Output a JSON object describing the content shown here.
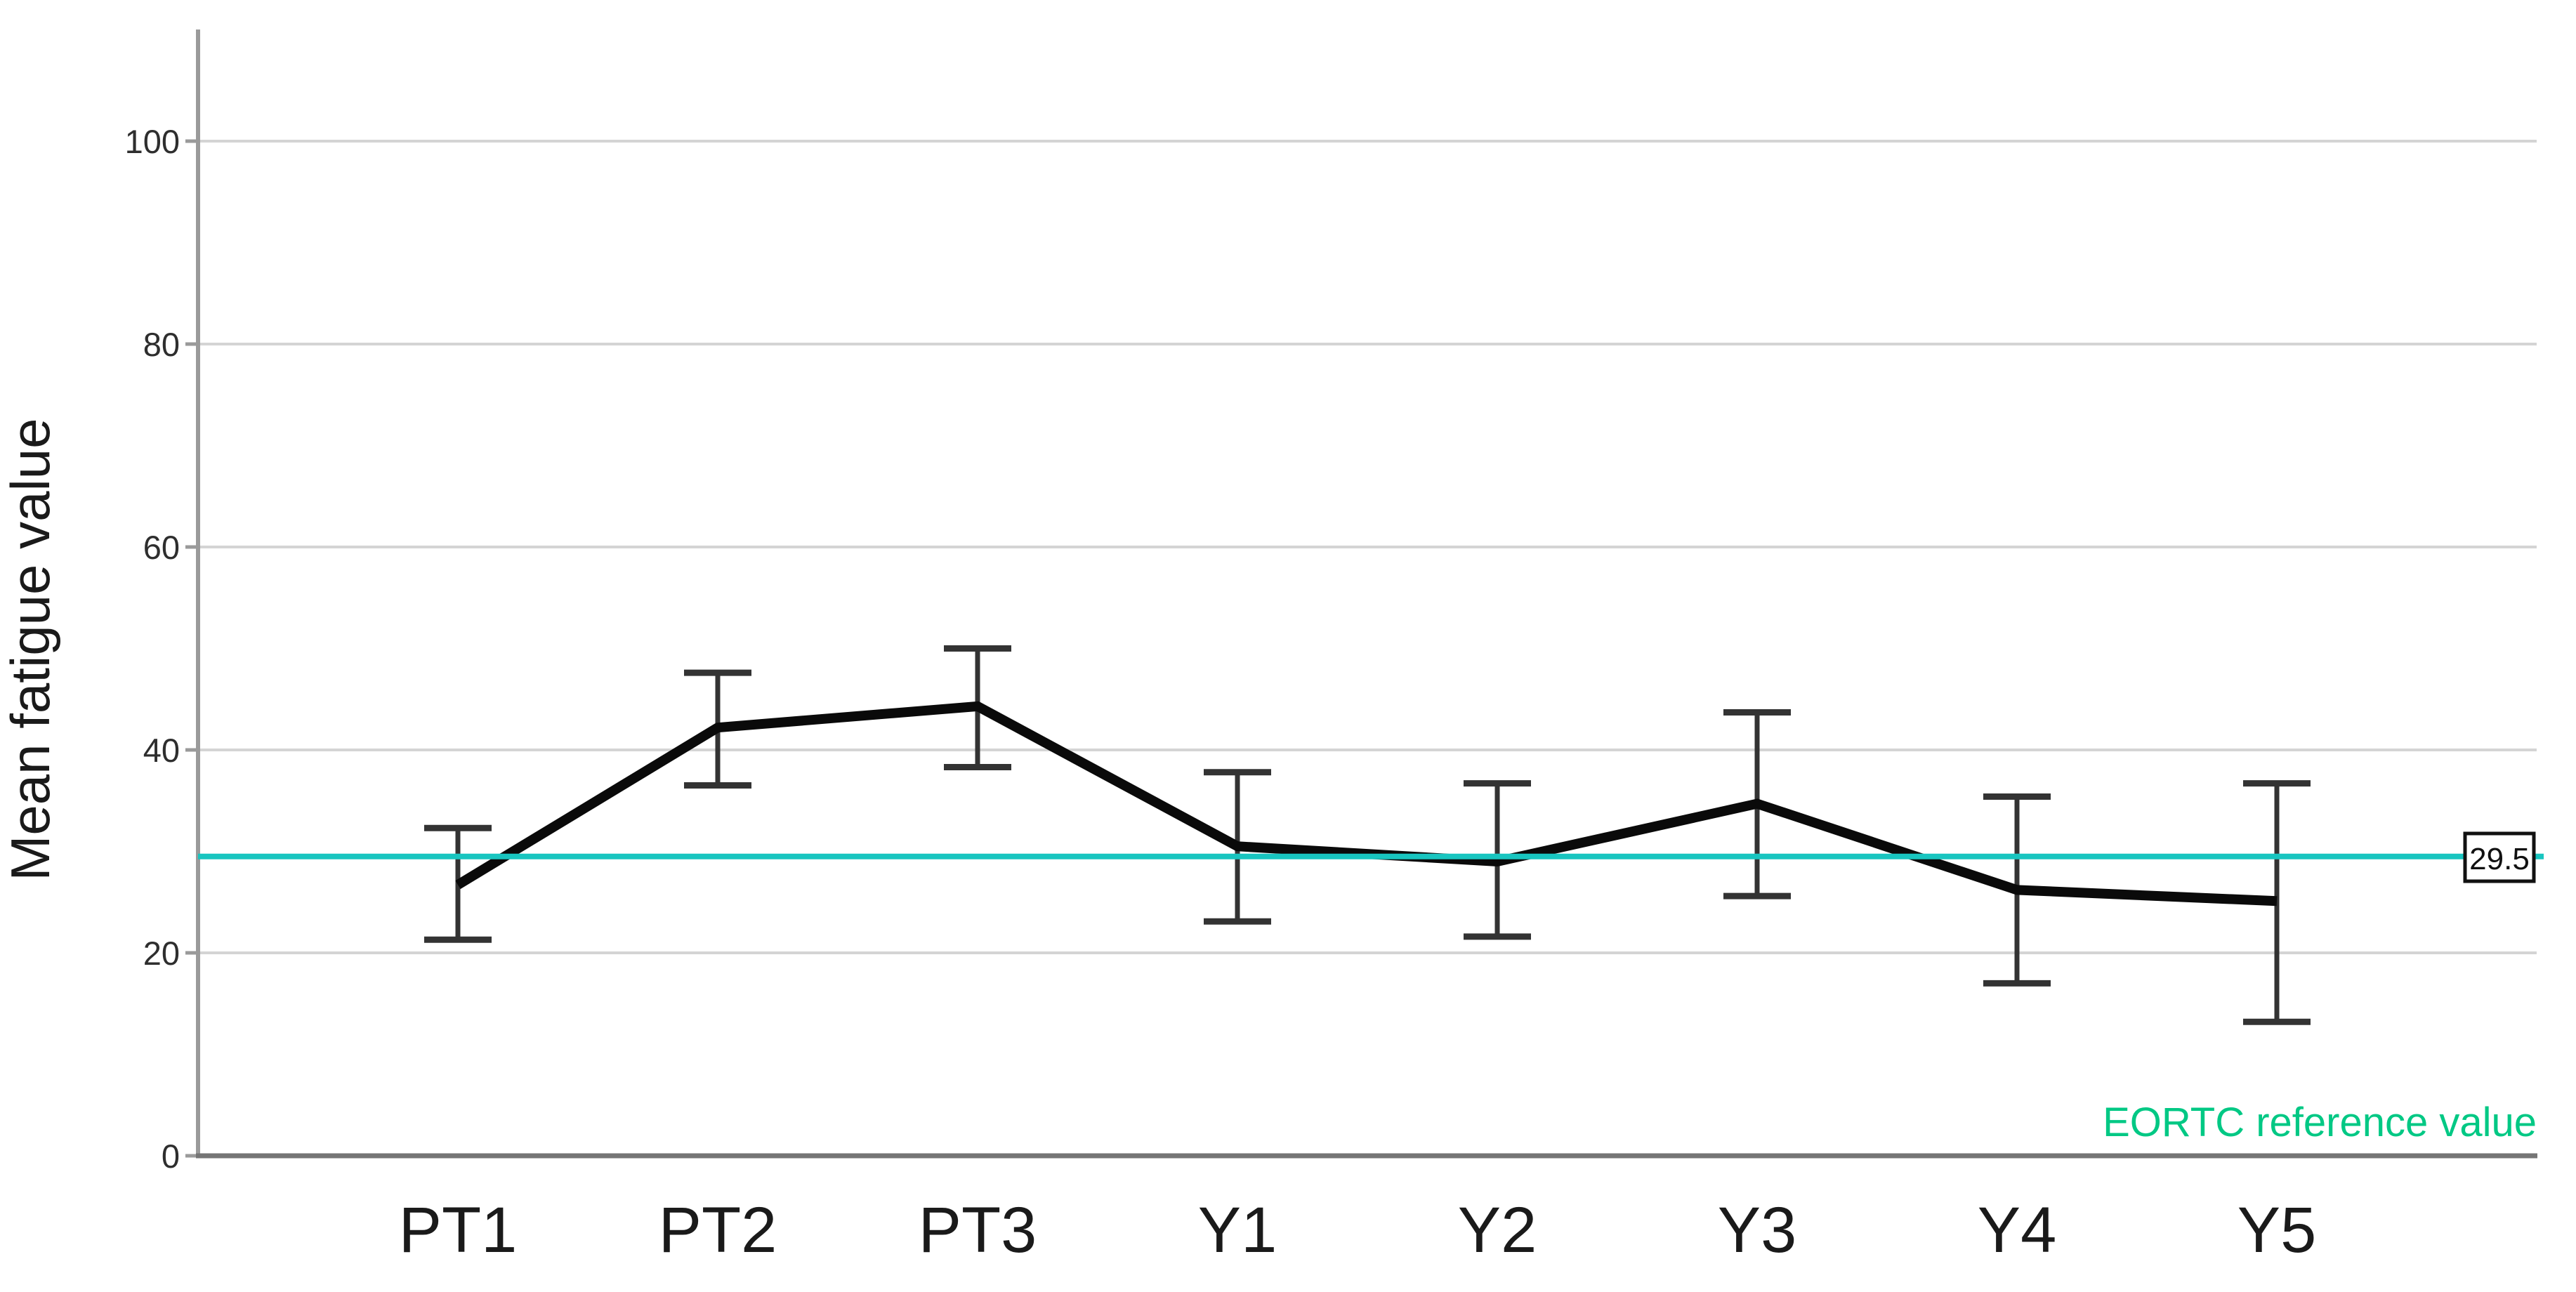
{
  "chart_data": {
    "type": "line",
    "title": "",
    "xlabel": "",
    "ylabel": "Mean fatigue value",
    "categories": [
      "PT1",
      "PT2",
      "PT3",
      "Y1",
      "Y2",
      "Y3",
      "Y4",
      "Y5"
    ],
    "series": [
      {
        "name": "Mean fatigue value",
        "values": [
          26.7,
          42.2,
          44.3,
          30.5,
          29.0,
          34.7,
          26.2,
          25.1
        ],
        "ci_low": [
          21.3,
          36.5,
          38.3,
          23.1,
          21.6,
          25.6,
          17.0,
          13.2
        ],
        "ci_high": [
          32.3,
          47.6,
          50.0,
          37.8,
          36.7,
          43.7,
          35.4,
          36.7
        ],
        "color": "#0a0a0a"
      }
    ],
    "error_bar_color": "#333333",
    "y_ticks": [
      0,
      20,
      40,
      60,
      80,
      100
    ],
    "y_tick_labels": [
      "0",
      "20",
      "40",
      "60",
      "80",
      "100"
    ],
    "ylim": [
      0,
      111
    ],
    "grid": true,
    "gridline_color": "#d4d4d4",
    "axis_color": "#9a9a9a",
    "x_axis_color": "#757575",
    "tick_label_color": "#2e2e2e",
    "category_label_color": "#1a1a1a",
    "reference_line": {
      "value": 29.5,
      "label": "29.5",
      "color": "#18c5c0",
      "annotation": "EORTC reference value",
      "annotation_color": "#00c884"
    },
    "legend": null
  }
}
